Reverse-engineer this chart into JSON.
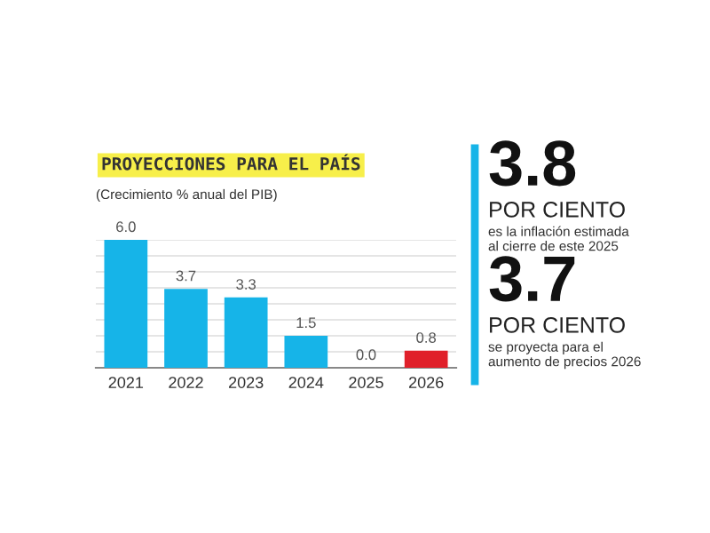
{
  "chart_data": [
    {
      "type": "bar",
      "title": "PROYECCIONES PARA EL PAÍS",
      "subtitle": "(Crecimiento % anual del PIB)",
      "categories": [
        "2021",
        "2022",
        "2023",
        "2024",
        "2025",
        "2026"
      ],
      "values": [
        6.0,
        3.7,
        3.3,
        1.5,
        0.0,
        0.8
      ],
      "colors": [
        "#16b4e8",
        "#16b4e8",
        "#16b4e8",
        "#16b4e8",
        "#16b4e8",
        "#e0202a"
      ],
      "value_labels": [
        "6.0",
        "3.7",
        "3.3",
        "1.5",
        "0.0",
        "0.8"
      ],
      "ylim": [
        0,
        6.0
      ],
      "yticks": [
        {
          "value": 0,
          "label": null
        },
        {
          "value": 0.75,
          "label": null
        },
        {
          "value": 1.5,
          "label": null
        },
        {
          "value": 2.25,
          "label": null
        },
        {
          "value": 3.0,
          "label": null
        },
        {
          "value": 3.75,
          "label": null
        },
        {
          "value": 4.5,
          "label": null
        },
        {
          "value": 5.25,
          "label": null
        },
        {
          "value": 6.0,
          "label": null
        }
      ],
      "grid": "y",
      "tick_labels": "x"
    },
    {
      "type": "other",
      "annotations": [
        "3.8",
        "POR CIENTO",
        "es la inflación estimada\nal cierre de este 2025",
        "3.7",
        "POR CIENTO",
        "se proyecta para el\naumento de precios 2026"
      ]
    }
  ]
}
